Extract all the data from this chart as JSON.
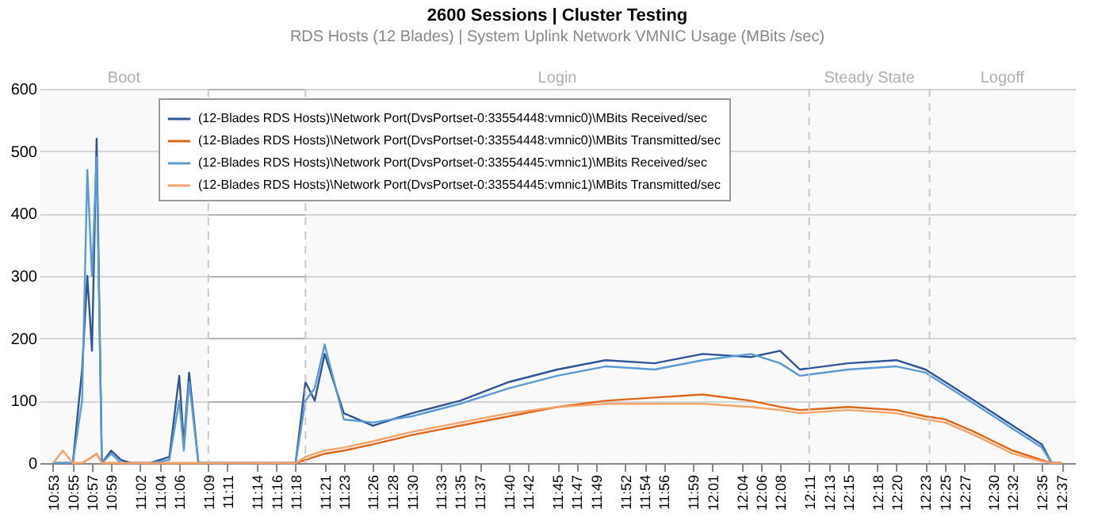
{
  "chart_data": {
    "type": "line",
    "title": "2600 Sessions | Cluster Testing",
    "subtitle": "RDS Hosts (12 Blades) | System Uplink Network VMNIC Usage (MBits /sec)",
    "x": [
      10.883,
      10.9,
      10.917,
      10.933,
      10.942,
      10.95,
      10.958,
      10.967,
      10.983,
      11.0,
      11.017,
      11.05,
      11.083,
      11.1,
      11.108,
      11.117,
      11.133,
      11.15,
      11.2,
      11.25,
      11.3,
      11.317,
      11.333,
      11.35,
      11.383,
      11.433,
      11.5,
      11.583,
      11.667,
      11.75,
      11.833,
      11.917,
      12.0,
      12.083,
      12.133,
      12.167,
      12.25,
      12.333,
      12.383,
      12.417,
      12.467,
      12.5,
      12.533,
      12.583,
      12.6,
      12.617
    ],
    "series": [
      {
        "name": "(12-Blades RDS Hosts)\\Network Port(DvsPortset-0:33554448:vmnic0)\\MBits Received/sec",
        "color": "#2e5597",
        "values": [
          0,
          0,
          0,
          150,
          300,
          180,
          520,
          0,
          20,
          5,
          0,
          0,
          10,
          140,
          30,
          145,
          0,
          0,
          0,
          0,
          0,
          130,
          100,
          175,
          80,
          60,
          80,
          100,
          130,
          150,
          165,
          160,
          175,
          170,
          180,
          150,
          160,
          165,
          150,
          130,
          100,
          80,
          60,
          30,
          0,
          0
        ]
      },
      {
        "name": "(12-Blades RDS Hosts)\\Network Port(DvsPortset-0:33554448:vmnic0)\\MBits Transmitted/sec",
        "color": "#e0661a",
        "values": [
          0,
          0,
          0,
          0,
          5,
          10,
          15,
          0,
          0,
          0,
          0,
          0,
          0,
          0,
          0,
          0,
          0,
          0,
          0,
          0,
          0,
          5,
          10,
          15,
          20,
          30,
          45,
          60,
          75,
          90,
          100,
          105,
          110,
          100,
          90,
          85,
          90,
          85,
          75,
          70,
          50,
          35,
          20,
          5,
          0,
          0
        ]
      },
      {
        "name": "(12-Blades RDS Hosts)\\Network Port(DvsPortset-0:33554445:vmnic1)\\MBits Received/sec",
        "color": "#5b9bd5",
        "values": [
          0,
          0,
          0,
          100,
          470,
          300,
          490,
          0,
          15,
          0,
          0,
          0,
          5,
          100,
          20,
          130,
          0,
          0,
          0,
          0,
          0,
          100,
          120,
          190,
          70,
          65,
          75,
          95,
          120,
          140,
          155,
          150,
          165,
          175,
          160,
          140,
          150,
          155,
          145,
          125,
          95,
          75,
          55,
          25,
          0,
          0
        ]
      },
      {
        "name": "(12-Blades RDS Hosts)\\Network Port(DvsPortset-0:33554445:vmnic1)\\MBits Transmitted/sec",
        "color": "#f4a46a",
        "values": [
          0,
          20,
          0,
          0,
          5,
          10,
          15,
          0,
          0,
          0,
          0,
          0,
          0,
          0,
          0,
          0,
          0,
          0,
          0,
          0,
          0,
          10,
          15,
          20,
          25,
          35,
          50,
          65,
          80,
          90,
          95,
          95,
          95,
          90,
          85,
          80,
          85,
          80,
          70,
          65,
          45,
          30,
          15,
          3,
          0,
          0
        ]
      }
    ],
    "xlim": [
      10.86,
      12.64
    ],
    "xticks": [
      {
        "value": 10.883,
        "label": "10:53"
      },
      {
        "value": 10.917,
        "label": "10:55"
      },
      {
        "value": 10.95,
        "label": "10:57"
      },
      {
        "value": 10.983,
        "label": "10:59"
      },
      {
        "value": 11.033,
        "label": "11:02"
      },
      {
        "value": 11.067,
        "label": "11:04"
      },
      {
        "value": 11.1,
        "label": "11:06"
      },
      {
        "value": 11.15,
        "label": "11:09"
      },
      {
        "value": 11.183,
        "label": "11:11"
      },
      {
        "value": 11.233,
        "label": "11:14"
      },
      {
        "value": 11.267,
        "label": "11:16"
      },
      {
        "value": 11.3,
        "label": "11:18"
      },
      {
        "value": 11.35,
        "label": "11:21"
      },
      {
        "value": 11.383,
        "label": "11:23"
      },
      {
        "value": 11.433,
        "label": "11:26"
      },
      {
        "value": 11.467,
        "label": "11:28"
      },
      {
        "value": 11.5,
        "label": "11:30"
      },
      {
        "value": 11.55,
        "label": "11:33"
      },
      {
        "value": 11.583,
        "label": "11:35"
      },
      {
        "value": 11.617,
        "label": "11:37"
      },
      {
        "value": 11.667,
        "label": "11:40"
      },
      {
        "value": 11.7,
        "label": "11:42"
      },
      {
        "value": 11.75,
        "label": "11:45"
      },
      {
        "value": 11.783,
        "label": "11:47"
      },
      {
        "value": 11.817,
        "label": "11:49"
      },
      {
        "value": 11.867,
        "label": "11:52"
      },
      {
        "value": 11.9,
        "label": "11:54"
      },
      {
        "value": 11.933,
        "label": "11:56"
      },
      {
        "value": 11.983,
        "label": "11:59"
      },
      {
        "value": 12.017,
        "label": "12:01"
      },
      {
        "value": 12.067,
        "label": "12:04"
      },
      {
        "value": 12.1,
        "label": "12:06"
      },
      {
        "value": 12.133,
        "label": "12:08"
      },
      {
        "value": 12.183,
        "label": "12:11"
      },
      {
        "value": 12.217,
        "label": "12:13"
      },
      {
        "value": 12.25,
        "label": "12:15"
      },
      {
        "value": 12.3,
        "label": "12:18"
      },
      {
        "value": 12.333,
        "label": "12:20"
      },
      {
        "value": 12.383,
        "label": "12:23"
      },
      {
        "value": 12.417,
        "label": "12:25"
      },
      {
        "value": 12.45,
        "label": "12:27"
      },
      {
        "value": 12.5,
        "label": "12:30"
      },
      {
        "value": 12.533,
        "label": "12:32"
      },
      {
        "value": 12.583,
        "label": "12:35"
      },
      {
        "value": 12.617,
        "label": "12:37"
      }
    ],
    "ylim": [
      0,
      600
    ],
    "yticks": [
      0,
      100,
      200,
      300,
      400,
      500,
      600
    ],
    "grid": "y",
    "legend": "top",
    "ref_lines": [
      {
        "axis": "x",
        "value": 11.15,
        "label": null,
        "color": "#c8c8c8",
        "line_style": "dashed"
      },
      {
        "axis": "x",
        "value": 11.317,
        "label": null,
        "color": "#c8c8c8",
        "line_style": "dashed"
      },
      {
        "axis": "x",
        "value": 12.183,
        "label": null,
        "color": "#c8c8c8",
        "line_style": "dashed"
      },
      {
        "axis": "x",
        "value": 12.39,
        "label": null,
        "color": "#c8c8c8",
        "line_style": "dashed"
      }
    ],
    "bands": [
      {
        "axis": "x",
        "from": 10.86,
        "to": 11.15,
        "label": "Boot"
      },
      {
        "axis": "x",
        "from": 11.317,
        "to": 12.183,
        "label": "Login"
      },
      {
        "axis": "x",
        "from": 12.183,
        "to": 12.39,
        "label": "Steady State"
      },
      {
        "axis": "x",
        "from": 12.39,
        "to": 12.64,
        "label": "Logoff"
      }
    ]
  }
}
